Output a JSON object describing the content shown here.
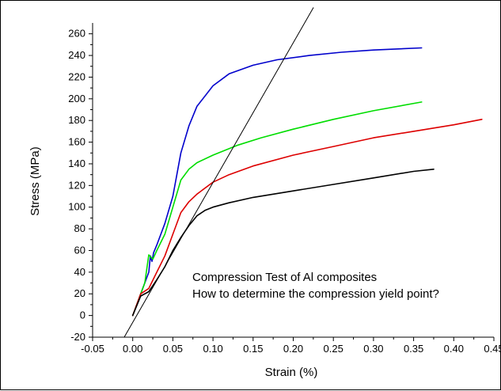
{
  "chart_data": {
    "type": "line",
    "title": "",
    "xlabel": "Strain (%)",
    "ylabel": "Stress (MPa)",
    "xlim": [
      -0.05,
      0.45
    ],
    "ylim": [
      -20,
      270
    ],
    "x_ticks": [
      "-0.05",
      "0.00",
      "0.05",
      "0.10",
      "0.15",
      "0.20",
      "0.25",
      "0.30",
      "0.35",
      "0.40",
      "0.45"
    ],
    "x_tick_values": [
      -0.05,
      0.0,
      0.05,
      0.1,
      0.15,
      0.2,
      0.25,
      0.3,
      0.35,
      0.4,
      0.45
    ],
    "y_ticks": [
      "-20",
      "0",
      "20",
      "40",
      "60",
      "80",
      "100",
      "120",
      "140",
      "160",
      "180",
      "200",
      "220",
      "240",
      "260"
    ],
    "y_tick_values": [
      -20,
      0,
      20,
      40,
      60,
      80,
      100,
      120,
      140,
      160,
      180,
      200,
      220,
      240,
      260
    ],
    "grid": false,
    "legend": "none",
    "annotations": [
      "Compression Test of Al composites",
      "How to determine the compression yield point?"
    ],
    "series": [
      {
        "color": "#0000cc",
        "x": [
          0.0,
          0.01,
          0.02,
          0.022,
          0.024,
          0.026,
          0.03,
          0.04,
          0.05,
          0.06,
          0.07,
          0.08,
          0.1,
          0.12,
          0.15,
          0.18,
          0.22,
          0.26,
          0.3,
          0.36
        ],
        "y": [
          0,
          20,
          40,
          55,
          50,
          58,
          65,
          85,
          110,
          150,
          175,
          193,
          212,
          223,
          231,
          236,
          240,
          243,
          245,
          247
        ]
      },
      {
        "color": "#00dd00",
        "x": [
          0.0,
          0.01,
          0.015,
          0.02,
          0.025,
          0.03,
          0.04,
          0.05,
          0.06,
          0.07,
          0.08,
          0.1,
          0.13,
          0.16,
          0.2,
          0.25,
          0.3,
          0.36
        ],
        "y": [
          0,
          20,
          30,
          56,
          52,
          60,
          75,
          100,
          125,
          135,
          141,
          148,
          157,
          164,
          172,
          181,
          189,
          197
        ]
      },
      {
        "color": "#dd0000",
        "x": [
          0.0,
          0.01,
          0.02,
          0.03,
          0.04,
          0.05,
          0.06,
          0.07,
          0.08,
          0.1,
          0.12,
          0.15,
          0.2,
          0.25,
          0.3,
          0.35,
          0.4,
          0.435
        ],
        "y": [
          0,
          20,
          25,
          40,
          55,
          75,
          95,
          105,
          112,
          123,
          130,
          138,
          148,
          156,
          164,
          170,
          176,
          181
        ]
      },
      {
        "color": "#000000",
        "x": [
          0.0,
          0.01,
          0.02,
          0.03,
          0.04,
          0.05,
          0.06,
          0.07,
          0.08,
          0.09,
          0.1,
          0.12,
          0.15,
          0.2,
          0.25,
          0.3,
          0.35,
          0.375
        ],
        "y": [
          0,
          18,
          22,
          33,
          45,
          60,
          72,
          83,
          92,
          97,
          100,
          104,
          109,
          115,
          121,
          127,
          133,
          135
        ]
      },
      {
        "color": "#000000",
        "x": [
          -0.04,
          0.225
        ],
        "y": [
          -58,
          284
        ]
      }
    ]
  }
}
